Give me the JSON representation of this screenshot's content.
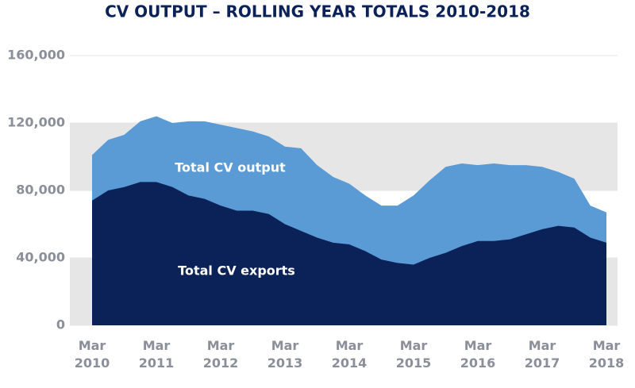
{
  "chart_data": {
    "type": "area",
    "title": "CV OUTPUT – ROLLING YEAR TOTALS 2010-2018",
    "categories": [
      "Mar 2010",
      null,
      null,
      null,
      "Mar 2011",
      null,
      null,
      null,
      "Mar 2012",
      null,
      null,
      null,
      "Mar 2013",
      null,
      null,
      null,
      "Mar 2014",
      null,
      null,
      null,
      "Mar 2015",
      null,
      null,
      null,
      "Mar 2016",
      null,
      null,
      null,
      "Mar 2017",
      null,
      null,
      null,
      "Mar 2018"
    ],
    "series": [
      {
        "name": "Total CV output",
        "color": "#5b9bd5",
        "values": [
          101000,
          110000,
          113000,
          121000,
          124000,
          120000,
          121000,
          121000,
          119000,
          117000,
          115000,
          112000,
          106000,
          105000,
          95000,
          88000,
          84000,
          77000,
          71000,
          71000,
          77000,
          86000,
          94000,
          96000,
          95000,
          96000,
          95000,
          95000,
          94000,
          91000,
          87000,
          71000,
          67000
        ]
      },
      {
        "name": "Total CV exports",
        "color": "#0b2259",
        "values": [
          74000,
          80000,
          82000,
          85000,
          85000,
          82000,
          77000,
          75000,
          71000,
          68000,
          68000,
          66000,
          60000,
          56000,
          52000,
          49000,
          48000,
          44000,
          39000,
          37000,
          36000,
          40000,
          43000,
          47000,
          50000,
          50000,
          51000,
          54000,
          57000,
          59000,
          58000,
          52000,
          49000
        ]
      }
    ],
    "ylim": [
      0,
      160000
    ],
    "yticks": [
      0,
      {
        "value": 40000,
        "label": "40,000"
      },
      {
        "value": 80000,
        "label": "80,000"
      },
      {
        "value": 120000,
        "label": "120,000"
      },
      {
        "value": 160000,
        "label": "160,000"
      }
    ],
    "bands": true
  }
}
